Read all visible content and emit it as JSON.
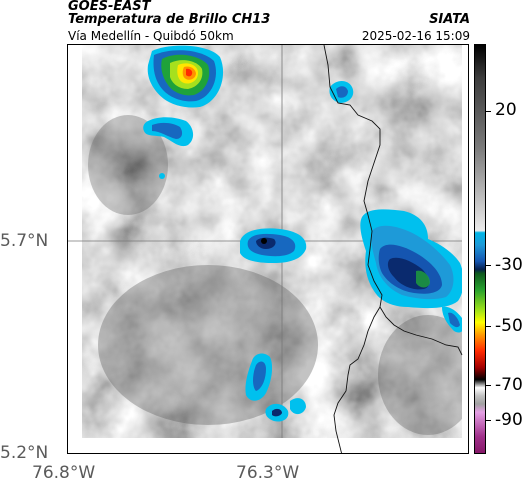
{
  "header": {
    "satellite": "GOES-EAST",
    "product": "Temperatura de Brillo CH13",
    "region": "Vía Medellín - Quibdó 50km",
    "brand": "SIATA",
    "timestamp": "2025-02-16 15:09"
  },
  "map": {
    "lat_labels": [
      "5.7°N",
      "5.2°N"
    ],
    "lon_labels": [
      "76.8°W",
      "76.3°W"
    ]
  },
  "colorbar": {
    "labels": [
      "20",
      "-30",
      "-50",
      "-70",
      "-90"
    ]
  },
  "colors": {
    "cold_cyan": "#00b5e6",
    "deep_blue": "#0a2a6e",
    "green": "#1fa23a",
    "yellow": "#ffff00",
    "red": "#ff2a00"
  }
}
